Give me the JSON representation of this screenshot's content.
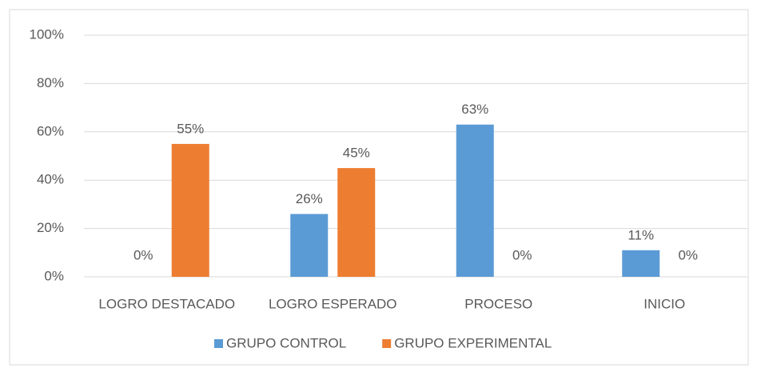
{
  "chart_data": {
    "type": "bar",
    "categories": [
      "LOGRO DESTACADO",
      "LOGRO ESPERADO",
      "PROCESO",
      "INICIO"
    ],
    "series": [
      {
        "name": "GRUPO CONTROL",
        "color": "#5b9bd5",
        "values": [
          0,
          26,
          63,
          11
        ],
        "value_labels": [
          "0%",
          "26%",
          "63%",
          "11%"
        ]
      },
      {
        "name": "GRUPO EXPERIMENTAL",
        "color": "#ed7d31",
        "values": [
          55,
          45,
          0,
          0
        ],
        "value_labels": [
          "55%",
          "45%",
          "0%",
          "0%"
        ]
      }
    ],
    "ylim": [
      0,
      100
    ],
    "yticks": [
      {
        "value": 0,
        "label": "0%"
      },
      {
        "value": 20,
        "label": "20%"
      },
      {
        "value": 40,
        "label": "40%"
      },
      {
        "value": 60,
        "label": "60%"
      },
      {
        "value": 80,
        "label": "80%"
      },
      {
        "value": 100,
        "label": "100%"
      }
    ],
    "grid": true,
    "legend": "bottom"
  }
}
